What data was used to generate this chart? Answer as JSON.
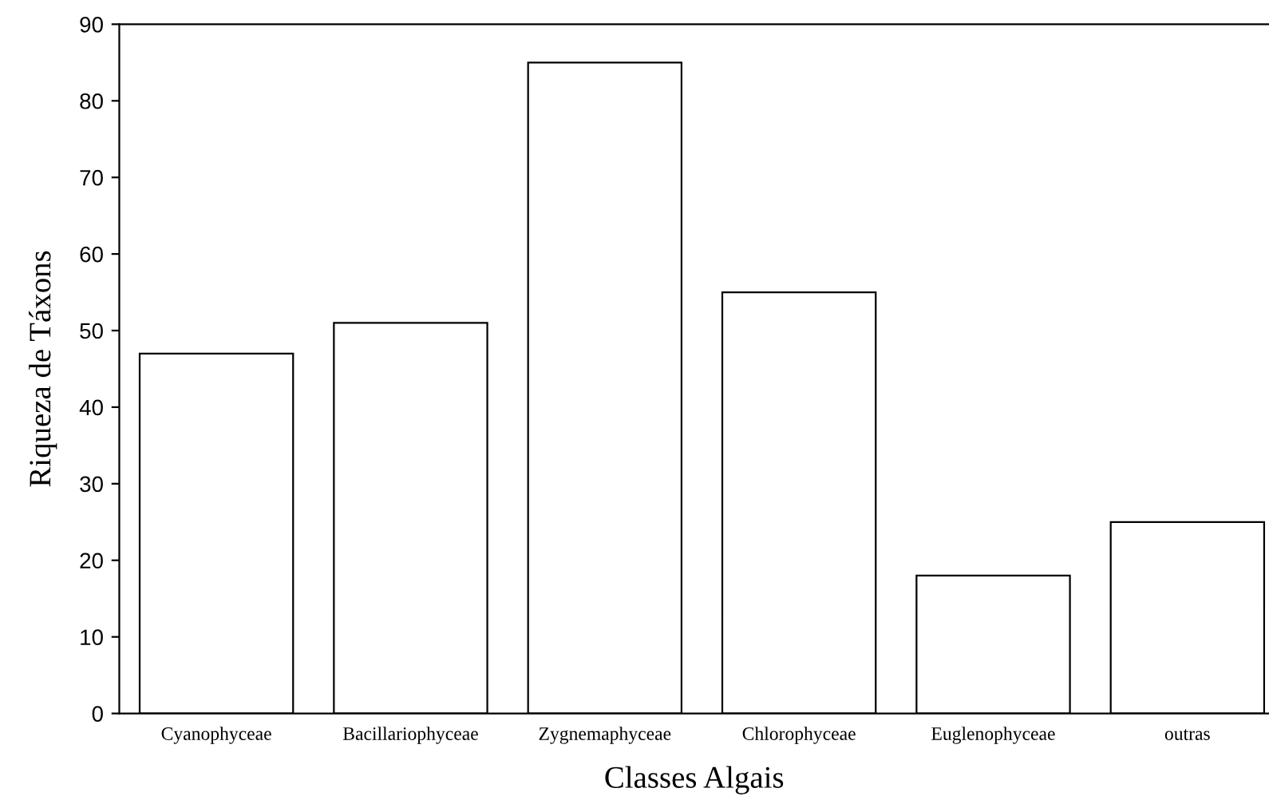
{
  "chart_data": {
    "type": "bar",
    "xlabel": "Classes Algais",
    "ylabel": "Riqueza de Táxons",
    "categories": [
      "Cyanophyceae",
      "Bacillariophyceae",
      "Zygnemaphyceae",
      "Chlorophyceae",
      "Euglenophyceae",
      "outras"
    ],
    "values": [
      47,
      51,
      85,
      55,
      18,
      25
    ],
    "color": "#ffffff",
    "ylim": [
      0,
      90
    ],
    "yticks": [
      0,
      10,
      20,
      30,
      40,
      50,
      60,
      70,
      80,
      90
    ],
    "grid": false,
    "legend": false
  }
}
